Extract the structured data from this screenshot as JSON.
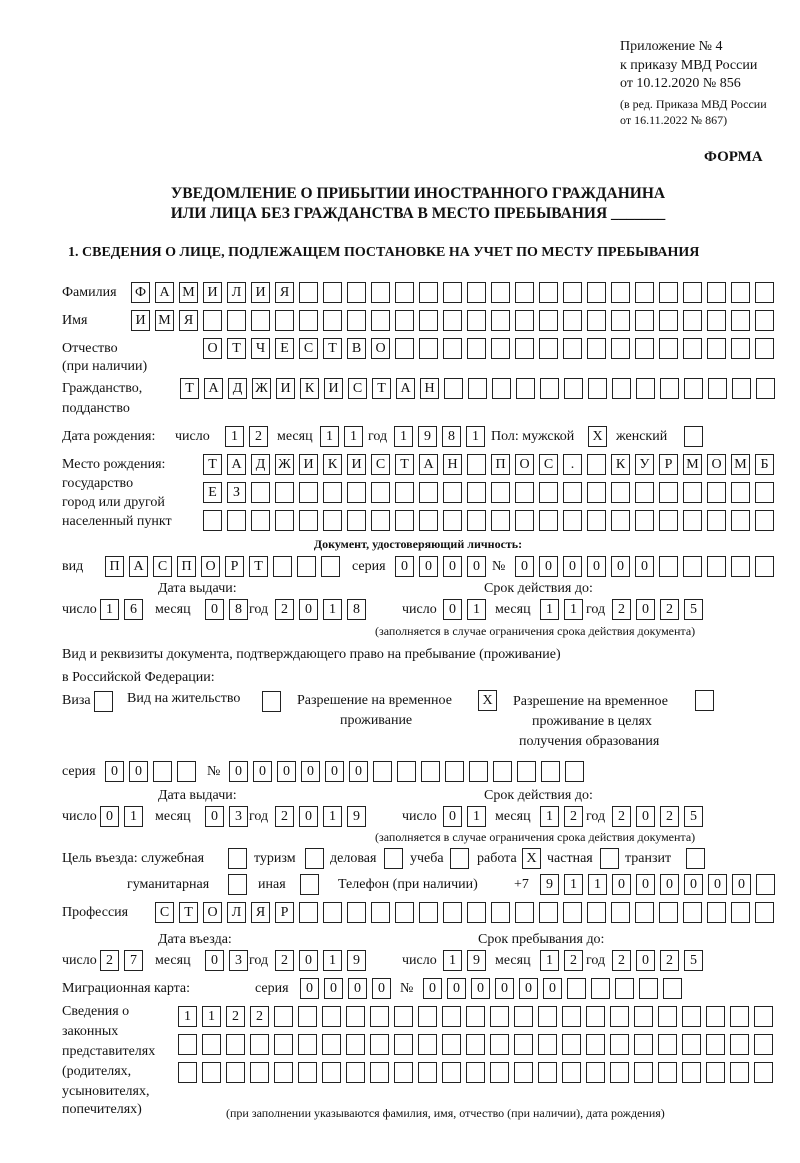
{
  "header": {
    "line1": "Приложение № 4",
    "line2": "к приказу МВД России",
    "line3": "от 10.12.2020 № 856",
    "line4": "(в ред. Приказа МВД России",
    "line5": "от 16.11.2022 № 867)",
    "form_label": "ФОРМА"
  },
  "title": {
    "line1": "УВЕДОМЛЕНИЕ О ПРИБЫТИИ ИНОСТРАННОГО ГРАЖДАНИНА",
    "line2": "ИЛИ ЛИЦА БЕЗ ГРАЖДАНСТВА В МЕСТО ПРЕБЫВАНИЯ _______"
  },
  "section1_title": "1. СВЕДЕНИЯ О ЛИЦЕ, ПОДЛЕЖАЩЕМ ПОСТАНОВКЕ НА УЧЕТ ПО МЕСТУ ПРЕБЫВАНИЯ",
  "person": {
    "surname_label": "Фамилия",
    "surname": [
      "Ф",
      "А",
      "М",
      "И",
      "Л",
      "И",
      "Я",
      "",
      "",
      "",
      "",
      "",
      "",
      "",
      "",
      "",
      "",
      "",
      "",
      "",
      "",
      "",
      "",
      "",
      "",
      "",
      ""
    ],
    "name_label": "Имя",
    "name": [
      "И",
      "М",
      "Я",
      "",
      "",
      "",
      "",
      "",
      "",
      "",
      "",
      "",
      "",
      "",
      "",
      "",
      "",
      "",
      "",
      "",
      "",
      "",
      "",
      "",
      "",
      "",
      ""
    ],
    "patronymic_label1": "Отчество",
    "patronymic_label2": "(при наличии)",
    "patronymic": [
      "О",
      "Т",
      "Ч",
      "Е",
      "С",
      "Т",
      "В",
      "О",
      "",
      "",
      "",
      "",
      "",
      "",
      "",
      "",
      "",
      "",
      "",
      "",
      "",
      "",
      "",
      ""
    ],
    "citizenship_label1": "Гражданство,",
    "citizenship_label2": "подданство",
    "citizenship": [
      "Т",
      "А",
      "Д",
      "Ж",
      "И",
      "К",
      "И",
      "С",
      "Т",
      "А",
      "Н",
      "",
      "",
      "",
      "",
      "",
      "",
      "",
      "",
      "",
      "",
      "",
      "",
      "",
      ""
    ],
    "birth_date_label": "Дата рождения:",
    "day_label": "число",
    "month_label": "месяц",
    "year_label": "год",
    "birth_day": [
      "1",
      "2"
    ],
    "birth_month": [
      "1",
      "1"
    ],
    "birth_year": [
      "1",
      "9",
      "8",
      "1"
    ],
    "sex_label": "Пол: мужской",
    "sex_male": [
      "X"
    ],
    "sex_female_label": "женский",
    "sex_female": [
      ""
    ],
    "birthplace_label1": "Место рождения:",
    "birthplace_label2": "государство",
    "birthplace_label3": "город или другой",
    "birthplace_label4": "населенный пункт",
    "birthplace_row1": [
      "Т",
      "А",
      "Д",
      "Ж",
      "И",
      "К",
      "И",
      "С",
      "Т",
      "А",
      "Н",
      "",
      "П",
      "О",
      "С",
      ".",
      "",
      "К",
      "У",
      "Р",
      "М",
      "О",
      "М",
      "Б"
    ],
    "birthplace_row2": [
      "Е",
      "З",
      "",
      "",
      "",
      "",
      "",
      "",
      "",
      "",
      "",
      "",
      "",
      "",
      "",
      "",
      "",
      "",
      "",
      "",
      "",
      "",
      "",
      ""
    ],
    "birthplace_row3": [
      "",
      "",
      "",
      "",
      "",
      "",
      "",
      "",
      "",
      "",
      "",
      "",
      "",
      "",
      "",
      "",
      "",
      "",
      "",
      "",
      "",
      "",
      "",
      ""
    ]
  },
  "id_document": {
    "heading": "Документ, удостоверяющий личность:",
    "type_label": "вид",
    "type": [
      "П",
      "А",
      "С",
      "П",
      "О",
      "Р",
      "Т",
      "",
      "",
      ""
    ],
    "series_label": "серия",
    "series": [
      "0",
      "0",
      "0",
      "0"
    ],
    "number_label": "№",
    "number": [
      "0",
      "0",
      "0",
      "0",
      "0",
      "0",
      "",
      "",
      "",
      "",
      ""
    ],
    "issue_label": "Дата выдачи:",
    "valid_label": "Срок действия до:",
    "issue_day": [
      "1",
      "6"
    ],
    "issue_month": [
      "0",
      "8"
    ],
    "issue_year": [
      "2",
      "0",
      "1",
      "8"
    ],
    "valid_day": [
      "0",
      "1"
    ],
    "valid_month": [
      "1",
      "1"
    ],
    "valid_year": [
      "2",
      "0",
      "2",
      "5"
    ],
    "note": "(заполняется в случае ограничения срока действия документа)"
  },
  "stay_document": {
    "label1": "Вид и реквизиты документа, подтверждающего право на пребывание (проживание)",
    "label2": "в Российской Федерации:",
    "visa_label": "Виза",
    "visa": [
      ""
    ],
    "residence_label": "Вид на жительство",
    "residence": [
      ""
    ],
    "temp_label1": "Разрешение на временное",
    "temp_label2": "проживание",
    "temp": [
      "X"
    ],
    "edu_label1": "Разрешение на временное",
    "edu_label2": "проживание в целях",
    "edu_label3": "получения образования",
    "edu": [
      ""
    ],
    "series_label": "серия",
    "series": [
      "0",
      "0",
      "",
      ""
    ],
    "number_label": "№",
    "number": [
      "0",
      "0",
      "0",
      "0",
      "0",
      "0",
      "",
      "",
      "",
      "",
      "",
      "",
      "",
      "",
      ""
    ],
    "issue_label": "Дата выдачи:",
    "valid_label": "Срок действия до:",
    "issue_day": [
      "0",
      "1"
    ],
    "issue_month": [
      "0",
      "3"
    ],
    "issue_year": [
      "2",
      "0",
      "1",
      "9"
    ],
    "valid_day": [
      "0",
      "1"
    ],
    "valid_month": [
      "1",
      "2"
    ],
    "valid_year": [
      "2",
      "0",
      "2",
      "5"
    ],
    "note": "(заполняется в случае ограничения срока действия документа)"
  },
  "purpose": {
    "label": "Цель въезда: служебная",
    "official": [
      ""
    ],
    "tourism_label": "туризм",
    "tourism": [
      ""
    ],
    "business_label": "деловая",
    "business": [
      ""
    ],
    "study_label": "учеба",
    "study": [
      ""
    ],
    "work_label": "работа",
    "work": [
      "X"
    ],
    "private_label": "частная",
    "private": [
      ""
    ],
    "transit_label": "транзит",
    "transit": [
      ""
    ],
    "humanitarian_label": "гуманитарная",
    "humanitarian": [
      ""
    ],
    "other_label": "иная",
    "other": [
      ""
    ],
    "phone_label": "Телефон (при наличии)",
    "phone_prefix": "+7",
    "phone": [
      "9",
      "1",
      "1",
      "0",
      "0",
      "0",
      "0",
      "0",
      "0",
      ""
    ]
  },
  "profession": {
    "label": "Профессия",
    "value": [
      "С",
      "Т",
      "О",
      "Л",
      "Я",
      "Р",
      "",
      "",
      "",
      "",
      "",
      "",
      "",
      "",
      "",
      "",
      "",
      "",
      "",
      "",
      "",
      "",
      "",
      "",
      "",
      ""
    ]
  },
  "entry": {
    "entry_label": "Дата въезда:",
    "stay_until_label": "Срок пребывания до:",
    "entry_day": [
      "2",
      "7"
    ],
    "entry_month": [
      "0",
      "3"
    ],
    "entry_year": [
      "2",
      "0",
      "1",
      "9"
    ],
    "until_day": [
      "1",
      "9"
    ],
    "until_month": [
      "1",
      "2"
    ],
    "until_year": [
      "2",
      "0",
      "2",
      "5"
    ]
  },
  "migration_card": {
    "label": "Миграционная карта:",
    "series_label": "серия",
    "series": [
      "0",
      "0",
      "0",
      "0"
    ],
    "number_label": "№",
    "number": [
      "0",
      "0",
      "0",
      "0",
      "0",
      "0",
      "",
      "",
      "",
      "",
      ""
    ]
  },
  "representatives": {
    "label1": "Сведения о",
    "label2": "законных",
    "label3": "представителях",
    "label4": "(родителях,",
    "label5": "усыновителях,",
    "label6": "попечителях)",
    "row1": [
      "1",
      "1",
      "2",
      "2",
      "",
      "",
      "",
      "",
      "",
      "",
      "",
      "",
      "",
      "",
      "",
      "",
      "",
      "",
      "",
      "",
      "",
      "",
      "",
      "",
      ""
    ],
    "row2": [
      "",
      "",
      "",
      "",
      "",
      "",
      "",
      "",
      "",
      "",
      "",
      "",
      "",
      "",
      "",
      "",
      "",
      "",
      "",
      "",
      "",
      "",
      "",
      "",
      ""
    ],
    "row3": [
      "",
      "",
      "",
      "",
      "",
      "",
      "",
      "",
      "",
      "",
      "",
      "",
      "",
      "",
      "",
      "",
      "",
      "",
      "",
      "",
      "",
      "",
      "",
      "",
      ""
    ],
    "note": "(при заполнении указываются фамилия, имя, отчество (при наличии), дата рождения)"
  }
}
